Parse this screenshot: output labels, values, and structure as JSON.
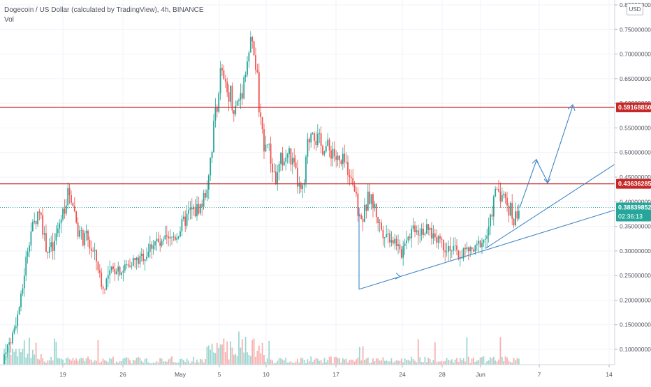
{
  "header": {
    "symbol_line": "Dogecoin / US Dollar (calculated by TradingView), 4h, BINANCE",
    "volume_label": "Vol"
  },
  "currency_button": "USD",
  "chart_data": {
    "type": "candlestick",
    "symbol": "Dogecoin / US Dollar",
    "interval": "4h",
    "exchange": "BINANCE",
    "ylim": [
      0.06,
      0.81
    ],
    "y_ticks": [
      "0.80000000",
      "0.75000000",
      "0.70000000",
      "0.65000000",
      "0.60000000",
      "0.55000000",
      "0.50000000",
      "0.45000000",
      "0.40000000",
      "0.35000000",
      "0.30000000",
      "0.25000000",
      "0.20000000",
      "0.15000000",
      "0.10000000"
    ],
    "y_tick_values": [
      0.8,
      0.75,
      0.7,
      0.65,
      0.6,
      0.55,
      0.5,
      0.45,
      0.4,
      0.35,
      0.3,
      0.25,
      0.2,
      0.15,
      0.1
    ],
    "x_ticks": [
      "19",
      "26",
      "May",
      "5",
      "10",
      "17",
      "24",
      "28",
      "Jun",
      "7",
      "14"
    ],
    "horizontal_levels": [
      {
        "value": 0.5916885,
        "label": "0.59168850",
        "color": "#c62828"
      },
      {
        "value": 0.43636285,
        "label": "0.43636285",
        "color": "#c62828"
      }
    ],
    "last_price": {
      "value": 0.38839852,
      "label": "0.38839852",
      "countdown": "02:36:13",
      "color": "#26a69a"
    },
    "price_path": [
      [
        0,
        0.07
      ],
      [
        4,
        0.08
      ],
      [
        8,
        0.1
      ],
      [
        12,
        0.11
      ],
      [
        16,
        0.12
      ],
      [
        20,
        0.14
      ],
      [
        24,
        0.16
      ],
      [
        28,
        0.19
      ],
      [
        32,
        0.22
      ],
      [
        36,
        0.27
      ],
      [
        40,
        0.31
      ],
      [
        44,
        0.34
      ],
      [
        48,
        0.35
      ],
      [
        52,
        0.37
      ],
      [
        56,
        0.39
      ],
      [
        60,
        0.36
      ],
      [
        64,
        0.32
      ],
      [
        68,
        0.3
      ],
      [
        72,
        0.31
      ],
      [
        76,
        0.3
      ],
      [
        80,
        0.33
      ],
      [
        84,
        0.35
      ],
      [
        88,
        0.37
      ],
      [
        92,
        0.39
      ],
      [
        96,
        0.41
      ],
      [
        100,
        0.42
      ],
      [
        104,
        0.4
      ],
      [
        108,
        0.37
      ],
      [
        112,
        0.34
      ],
      [
        116,
        0.33
      ],
      [
        120,
        0.32
      ],
      [
        124,
        0.33
      ],
      [
        128,
        0.31
      ],
      [
        132,
        0.3
      ],
      [
        136,
        0.29
      ],
      [
        140,
        0.27
      ],
      [
        144,
        0.24
      ],
      [
        148,
        0.22
      ],
      [
        152,
        0.24
      ],
      [
        156,
        0.25
      ],
      [
        160,
        0.26
      ],
      [
        164,
        0.26
      ],
      [
        168,
        0.27
      ],
      [
        172,
        0.26
      ],
      [
        176,
        0.26
      ],
      [
        180,
        0.27
      ],
      [
        184,
        0.27
      ],
      [
        188,
        0.28
      ],
      [
        192,
        0.28
      ],
      [
        196,
        0.28
      ],
      [
        200,
        0.28
      ],
      [
        204,
        0.29
      ],
      [
        208,
        0.29
      ],
      [
        212,
        0.3
      ],
      [
        216,
        0.31
      ],
      [
        220,
        0.32
      ],
      [
        224,
        0.32
      ],
      [
        228,
        0.31
      ],
      [
        232,
        0.31
      ],
      [
        236,
        0.32
      ],
      [
        240,
        0.32
      ],
      [
        244,
        0.32
      ],
      [
        248,
        0.33
      ],
      [
        252,
        0.33
      ],
      [
        256,
        0.34
      ],
      [
        260,
        0.35
      ],
      [
        264,
        0.36
      ],
      [
        268,
        0.37
      ],
      [
        272,
        0.38
      ],
      [
        276,
        0.38
      ],
      [
        280,
        0.38
      ],
      [
        284,
        0.39
      ],
      [
        288,
        0.39
      ],
      [
        292,
        0.41
      ],
      [
        296,
        0.43
      ],
      [
        300,
        0.48
      ],
      [
        304,
        0.52
      ],
      [
        308,
        0.58
      ],
      [
        312,
        0.62
      ],
      [
        316,
        0.66
      ],
      [
        320,
        0.64
      ],
      [
        324,
        0.62
      ],
      [
        328,
        0.63
      ],
      [
        332,
        0.61
      ],
      [
        336,
        0.58
      ],
      [
        340,
        0.6
      ],
      [
        344,
        0.62
      ],
      [
        348,
        0.64
      ],
      [
        352,
        0.68
      ],
      [
        356,
        0.7
      ],
      [
        360,
        0.72
      ],
      [
        364,
        0.7
      ],
      [
        368,
        0.65
      ],
      [
        372,
        0.57
      ],
      [
        376,
        0.52
      ],
      [
        380,
        0.53
      ],
      [
        384,
        0.51
      ],
      [
        388,
        0.48
      ],
      [
        392,
        0.46
      ],
      [
        396,
        0.44
      ],
      [
        400,
        0.47
      ],
      [
        404,
        0.49
      ],
      [
        408,
        0.48
      ],
      [
        412,
        0.5
      ],
      [
        416,
        0.49
      ],
      [
        420,
        0.47
      ],
      [
        424,
        0.45
      ],
      [
        428,
        0.43
      ],
      [
        432,
        0.41
      ],
      [
        436,
        0.44
      ],
      [
        440,
        0.51
      ],
      [
        444,
        0.54
      ],
      [
        448,
        0.56
      ],
      [
        452,
        0.53
      ],
      [
        456,
        0.52
      ],
      [
        460,
        0.51
      ],
      [
        464,
        0.52
      ],
      [
        468,
        0.51
      ],
      [
        472,
        0.5
      ],
      [
        476,
        0.51
      ],
      [
        480,
        0.49
      ],
      [
        484,
        0.48
      ],
      [
        488,
        0.47
      ],
      [
        492,
        0.48
      ],
      [
        496,
        0.47
      ],
      [
        500,
        0.47
      ],
      [
        504,
        0.45
      ],
      [
        508,
        0.42
      ],
      [
        512,
        0.38
      ],
      [
        516,
        0.36
      ],
      [
        520,
        0.37
      ],
      [
        524,
        0.39
      ],
      [
        528,
        0.41
      ],
      [
        532,
        0.4
      ],
      [
        536,
        0.39
      ],
      [
        540,
        0.37
      ],
      [
        544,
        0.35
      ],
      [
        548,
        0.34
      ],
      [
        552,
        0.34
      ],
      [
        556,
        0.33
      ],
      [
        560,
        0.33
      ],
      [
        564,
        0.32
      ],
      [
        568,
        0.32
      ],
      [
        572,
        0.29
      ],
      [
        576,
        0.3
      ],
      [
        580,
        0.33
      ],
      [
        584,
        0.33
      ],
      [
        588,
        0.34
      ],
      [
        592,
        0.35
      ],
      [
        596,
        0.35
      ],
      [
        600,
        0.34
      ],
      [
        604,
        0.35
      ],
      [
        608,
        0.34
      ],
      [
        612,
        0.34
      ],
      [
        616,
        0.34
      ],
      [
        620,
        0.33
      ],
      [
        624,
        0.33
      ],
      [
        628,
        0.33
      ],
      [
        632,
        0.32
      ],
      [
        636,
        0.31
      ],
      [
        640,
        0.31
      ],
      [
        644,
        0.31
      ],
      [
        648,
        0.3
      ],
      [
        652,
        0.3
      ],
      [
        656,
        0.29
      ],
      [
        660,
        0.29
      ],
      [
        664,
        0.3
      ],
      [
        668,
        0.3
      ],
      [
        672,
        0.3
      ],
      [
        676,
        0.3
      ],
      [
        680,
        0.3
      ],
      [
        684,
        0.31
      ],
      [
        688,
        0.32
      ],
      [
        692,
        0.32
      ],
      [
        696,
        0.33
      ],
      [
        700,
        0.34
      ],
      [
        704,
        0.38
      ],
      [
        708,
        0.41
      ],
      [
        712,
        0.43
      ],
      [
        716,
        0.42
      ],
      [
        720,
        0.41
      ],
      [
        724,
        0.4
      ],
      [
        728,
        0.39
      ],
      [
        732,
        0.38
      ],
      [
        736,
        0.36
      ],
      [
        740,
        0.38
      ],
      [
        744,
        0.388
      ]
    ]
  }
}
